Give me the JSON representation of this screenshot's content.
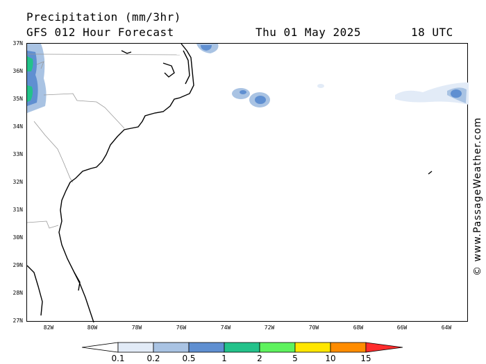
{
  "header": {
    "line1": "Precipitation (mm/3hr)",
    "line2_model": "GFS 012 Hour Forecast",
    "line2_date": "Thu 01 May 2025",
    "line2_time": "18 UTC"
  },
  "axes": {
    "lat_labels": [
      "37N",
      "36N",
      "35N",
      "34N",
      "33N",
      "32N",
      "31N",
      "30N",
      "29N",
      "28N",
      "27N"
    ],
    "lon_labels": [
      "82W",
      "80W",
      "78W",
      "76W",
      "74W",
      "72W",
      "70W",
      "68W",
      "66W",
      "64W"
    ]
  },
  "legend": {
    "labels": [
      "0.1",
      "0.2",
      "0.5",
      "1",
      "2",
      "5",
      "10",
      "15"
    ],
    "colors": [
      "#ffffff",
      "#e2ebf7",
      "#a9c3e3",
      "#5f8fd1",
      "#23c28a",
      "#5ef25e",
      "#ffe600",
      "#ff8c00",
      "#ff2c2c"
    ]
  },
  "copyright": "© www.PassageWeather.com"
}
